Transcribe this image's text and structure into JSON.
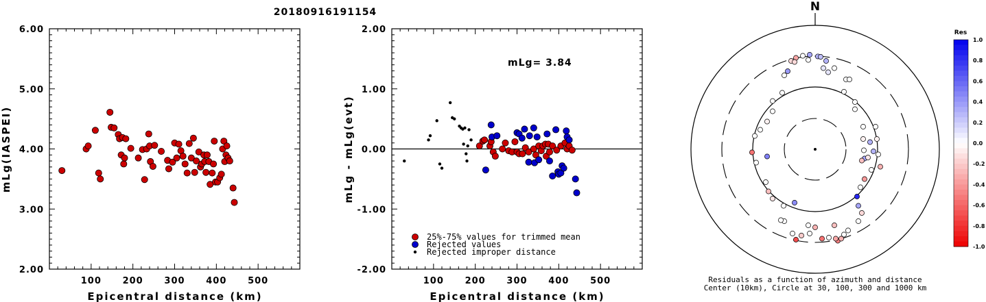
{
  "title": "20180916191154",
  "chart_data": [
    {
      "type": "scatter",
      "xlabel": "Epicentral distance (km)",
      "ylabel": "mLg(IASPEI)",
      "xlim": [
        0,
        600
      ],
      "ylim": [
        2.0,
        6.0
      ],
      "x_ticks": [
        "100",
        "200",
        "300",
        "400",
        "500"
      ],
      "y_ticks": [
        "2.00",
        "3.00",
        "4.00",
        "5.00",
        "6.00"
      ],
      "series": [
        {
          "color": "#cc0000",
          "points": [
            [
              30,
              3.64
            ],
            [
              88,
              4.0
            ],
            [
              93,
              4.05
            ],
            [
              110,
              4.31
            ],
            [
              118,
              3.6
            ],
            [
              122,
              3.5
            ],
            [
              145,
              4.61
            ],
            [
              148,
              4.36
            ],
            [
              155,
              4.35
            ],
            [
              165,
              4.24
            ],
            [
              168,
              4.17
            ],
            [
              172,
              3.9
            ],
            [
              175,
              4.19
            ],
            [
              178,
              3.75
            ],
            [
              180,
              3.85
            ],
            [
              183,
              4.17
            ],
            [
              195,
              4.01
            ],
            [
              213,
              3.85
            ],
            [
              223,
              3.99
            ],
            [
              228,
              3.49
            ],
            [
              233,
              4.0
            ],
            [
              238,
              4.25
            ],
            [
              240,
              4.05
            ],
            [
              242,
              3.79
            ],
            [
              248,
              3.71
            ],
            [
              252,
              4.06
            ],
            [
              268,
              3.96
            ],
            [
              283,
              3.81
            ],
            [
              286,
              3.67
            ],
            [
              295,
              3.78
            ],
            [
              300,
              4.1
            ],
            [
              305,
              3.85
            ],
            [
              310,
              4.08
            ],
            [
              315,
              3.97
            ],
            [
              320,
              3.88
            ],
            [
              325,
              3.75
            ],
            [
              330,
              3.6
            ],
            [
              335,
              4.09
            ],
            [
              340,
              3.85
            ],
            [
              345,
              4.18
            ],
            [
              348,
              3.61
            ],
            [
              352,
              3.8
            ],
            [
              358,
              3.95
            ],
            [
              362,
              3.7
            ],
            [
              365,
              3.75
            ],
            [
              370,
              3.9
            ],
            [
              372,
              3.79
            ],
            [
              375,
              3.61
            ],
            [
              378,
              3.9
            ],
            [
              382,
              3.79
            ],
            [
              385,
              3.41
            ],
            [
              390,
              3.6
            ],
            [
              393,
              3.75
            ],
            [
              395,
              4.13
            ],
            [
              398,
              3.45
            ],
            [
              403,
              3.45
            ],
            [
              408,
              3.52
            ],
            [
              412,
              3.58
            ],
            [
              415,
              4.0
            ],
            [
              418,
              4.13
            ],
            [
              420,
              3.79
            ],
            [
              423,
              3.9
            ],
            [
              425,
              4.05
            ],
            [
              428,
              3.85
            ],
            [
              432,
              3.8
            ],
            [
              440,
              3.35
            ],
            [
              443,
              3.11
            ]
          ]
        }
      ]
    },
    {
      "type": "scatter",
      "xlabel": "Epicentral distance (km)",
      "ylabel": "mLg - mLg(evt)",
      "xlim": [
        0,
        600
      ],
      "ylim": [
        -2.0,
        2.0
      ],
      "x_ticks": [
        "100",
        "200",
        "300",
        "400",
        "500"
      ],
      "y_ticks": [
        "-2.00",
        "-1.00",
        "0.00",
        "1.00",
        "2.00"
      ],
      "annotation": "mLg= 3.84",
      "reference_line": 0,
      "legend": [
        "25%-75% values for trimmed mean",
        "Rejected values",
        "Rejected improper distance"
      ],
      "legend_position": "bottom-left",
      "series": [
        {
          "name": "25%-75% values for trimmed mean",
          "color": "#cc0000",
          "points": [
            [
              210,
              0.05
            ],
            [
              218,
              0.13
            ],
            [
              222,
              0.15
            ],
            [
              235,
              0.05
            ],
            [
              238,
              0.12
            ],
            [
              243,
              -0.05
            ],
            [
              248,
              -0.12
            ],
            [
              265,
              0.0
            ],
            [
              272,
              0.1
            ],
            [
              280,
              -0.03
            ],
            [
              288,
              -0.05
            ],
            [
              295,
              0.12
            ],
            [
              300,
              -0.05
            ],
            [
              305,
              -0.08
            ],
            [
              313,
              -0.08
            ],
            [
              320,
              0.02
            ],
            [
              328,
              -0.05
            ],
            [
              340,
              0.0
            ],
            [
              345,
              -0.1
            ],
            [
              352,
              0.05
            ],
            [
              358,
              -0.03
            ],
            [
              362,
              0.05
            ],
            [
              368,
              0.08
            ],
            [
              370,
              -0.12
            ],
            [
              375,
              0.08
            ],
            [
              378,
              -0.05
            ],
            [
              385,
              0.05
            ],
            [
              395,
              -0.02
            ],
            [
              405,
              0.05
            ],
            [
              415,
              0.1
            ],
            [
              420,
              0.0
            ],
            [
              425,
              0.05
            ],
            [
              432,
              -0.02
            ]
          ]
        },
        {
          "name": "Rejected values",
          "color": "#0000cc",
          "points": [
            [
              225,
              -0.35
            ],
            [
              238,
              0.4
            ],
            [
              240,
              0.2
            ],
            [
              252,
              0.22
            ],
            [
              300,
              0.27
            ],
            [
              305,
              0.25
            ],
            [
              312,
              0.18
            ],
            [
              318,
              0.33
            ],
            [
              328,
              -0.22
            ],
            [
              330,
              0.22
            ],
            [
              340,
              0.35
            ],
            [
              342,
              -0.23
            ],
            [
              348,
              0.2
            ],
            [
              352,
              -0.18
            ],
            [
              372,
              0.25
            ],
            [
              378,
              -0.2
            ],
            [
              385,
              -0.45
            ],
            [
              393,
              0.32
            ],
            [
              398,
              -0.38
            ],
            [
              400,
              -0.42
            ],
            [
              405,
              -0.4
            ],
            [
              408,
              -0.28
            ],
            [
              412,
              -0.32
            ],
            [
              418,
              0.3
            ],
            [
              420,
              0.2
            ],
            [
              425,
              0.15
            ],
            [
              440,
              -0.5
            ],
            [
              443,
              -0.73
            ]
          ]
        },
        {
          "name": "Rejected improper distance",
          "color": "#000000",
          "points": [
            [
              30,
              -0.2
            ],
            [
              88,
              0.15
            ],
            [
              92,
              0.22
            ],
            [
              108,
              0.47
            ],
            [
              115,
              -0.25
            ],
            [
              120,
              -0.32
            ],
            [
              140,
              0.77
            ],
            [
              145,
              0.52
            ],
            [
              150,
              0.5
            ],
            [
              162,
              0.38
            ],
            [
              166,
              0.35
            ],
            [
              170,
              0.33
            ],
            [
              172,
              0.08
            ],
            [
              175,
              0.35
            ],
            [
              178,
              -0.08
            ],
            [
              180,
              -0.2
            ],
            [
              182,
              0.05
            ],
            [
              185,
              0.32
            ],
            [
              190,
              0.15
            ]
          ]
        }
      ]
    }
  ],
  "polar": {
    "north_label": "N",
    "caption_line1": "Residuals as a function of azimuth and distance",
    "caption_line2": "Center (10km), Circle at 30, 100, 300 and 1000 km",
    "points": [
      [
        -35,
        -4.3,
        -0.15
      ],
      [
        -28,
        -4.45,
        -0.35
      ],
      [
        -18,
        -4.55,
        0.0
      ],
      [
        -8,
        -4.6,
        0.35
      ],
      [
        4,
        -4.52,
        0.3
      ],
      [
        8,
        -4.5,
        0.25
      ],
      [
        16,
        -4.3,
        0.3
      ],
      [
        12,
        -3.95,
        0.1
      ],
      [
        19,
        -3.75,
        0.1
      ],
      [
        28,
        -3.95,
        0.0
      ],
      [
        45,
        -3.4,
        0.0
      ],
      [
        50,
        -3.4,
        0.0
      ],
      [
        42,
        -2.8,
        0.0
      ],
      [
        58,
        -2.3,
        0.0
      ],
      [
        58,
        -1.95,
        0.0
      ],
      [
        70,
        -1.1,
        0.0
      ],
      [
        70,
        -0.5,
        -0.05
      ],
      [
        71,
        0.05,
        0.0
      ],
      [
        72,
        0.45,
        0.35
      ],
      [
        68,
        0.55,
        -0.25
      ],
      [
        77,
        0.4,
        -0.1
      ],
      [
        85,
        0.1,
        0.3
      ],
      [
        80,
        -0.35,
        0.3
      ],
      [
        88,
        -1.1,
        0.0
      ],
      [
        90,
        -0.5,
        -0.05
      ],
      [
        92,
        0.25,
        0.0
      ],
      [
        95,
        0.85,
        -0.3
      ],
      [
        82,
        1.0,
        0.0
      ],
      [
        72,
        1.45,
        -0.4
      ],
      [
        66,
        1.85,
        0.0
      ],
      [
        61,
        2.3,
        0.85
      ],
      [
        63,
        2.75,
        0.35
      ],
      [
        68,
        3.1,
        -0.15
      ],
      [
        63,
        3.5,
        0.0
      ],
      [
        48,
        3.95,
        0.0
      ],
      [
        42,
        4.15,
        0.0
      ],
      [
        33,
        4.45,
        -0.5
      ],
      [
        38,
        4.35,
        -0.3
      ],
      [
        30,
        4.35,
        -0.35
      ],
      [
        28,
        3.7,
        -0.25
      ],
      [
        20,
        4.3,
        0.0
      ],
      [
        10,
        4.35,
        -0.55
      ],
      [
        0,
        3.8,
        -0.3
      ],
      [
        -8,
        4.1,
        0.0
      ],
      [
        -20,
        4.2,
        -0.2
      ],
      [
        -10,
        3.7,
        0.0
      ],
      [
        -28,
        4.4,
        -0.7
      ],
      [
        -33,
        4.1,
        0.0
      ],
      [
        -45,
        3.5,
        0.0
      ],
      [
        -50,
        3.45,
        0.0
      ],
      [
        -46,
        2.75,
        0.0
      ],
      [
        -30,
        2.6,
        0.45
      ],
      [
        -62,
        2.4,
        -0.1
      ],
      [
        -68,
        2.05,
        -0.25
      ],
      [
        -72,
        1.6,
        0.0
      ],
      [
        -86,
        0.65,
        0.0
      ],
      [
        -70,
        0.35,
        0.5
      ],
      [
        -92,
        0.15,
        -0.55
      ],
      [
        -88,
        -0.65,
        0.0
      ],
      [
        -80,
        -0.95,
        0.0
      ],
      [
        -70,
        -1.35,
        -0.05
      ],
      [
        -62,
        -1.85,
        0.0
      ],
      [
        -62,
        -2.35,
        0.0
      ],
      [
        -48,
        -2.75,
        0.0
      ],
      [
        -45,
        -3.6,
        0.0
      ],
      [
        -40,
        -3.8,
        0.4
      ],
      [
        -30,
        -4.25,
        -0.15
      ],
      [
        -10,
        -4.35,
        0.0
      ]
    ]
  },
  "colorbar": {
    "title": "Res",
    "labels": [
      "1.0",
      "0.8",
      "0.6",
      "0.4",
      "0.2",
      "0.0",
      "-0.2",
      "-0.4",
      "-0.6",
      "-0.8",
      "-1.0"
    ],
    "max_color": "#0000ee",
    "min_color": "#ee0000"
  }
}
